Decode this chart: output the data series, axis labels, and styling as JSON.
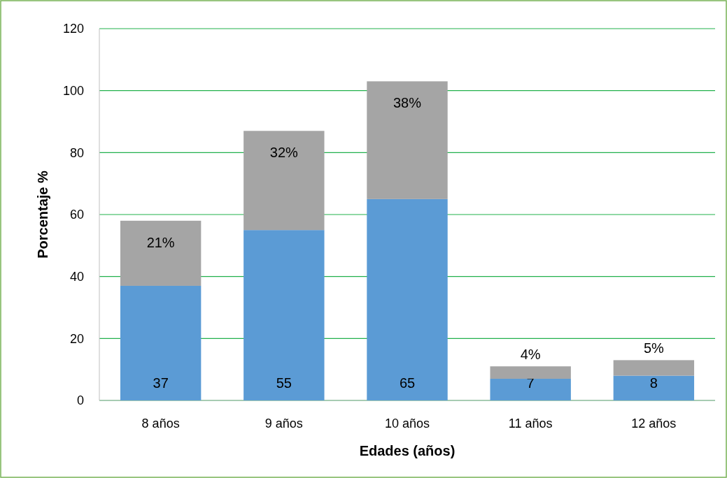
{
  "chart_data": {
    "type": "bar",
    "stacked": true,
    "xlabel": "Edades (años)",
    "ylabel": "Porcentaje %",
    "categories": [
      "8 años",
      "9 años",
      "10 años",
      "11 años",
      "12 años"
    ],
    "series": [
      {
        "color": "#5b9bd5",
        "values": [
          37,
          55,
          65,
          7,
          8
        ],
        "value_labels": [
          "37",
          "55",
          "65",
          "7",
          "8"
        ]
      },
      {
        "color": "#a5a5a5",
        "values": [
          21,
          32,
          38,
          4,
          5
        ],
        "value_labels": [
          "21%",
          "32%",
          "38%",
          "4%",
          "5%"
        ]
      }
    ],
    "ylim": [
      0,
      120
    ],
    "yticks": [
      0,
      20,
      40,
      60,
      80,
      100,
      120
    ],
    "grid": "y"
  }
}
